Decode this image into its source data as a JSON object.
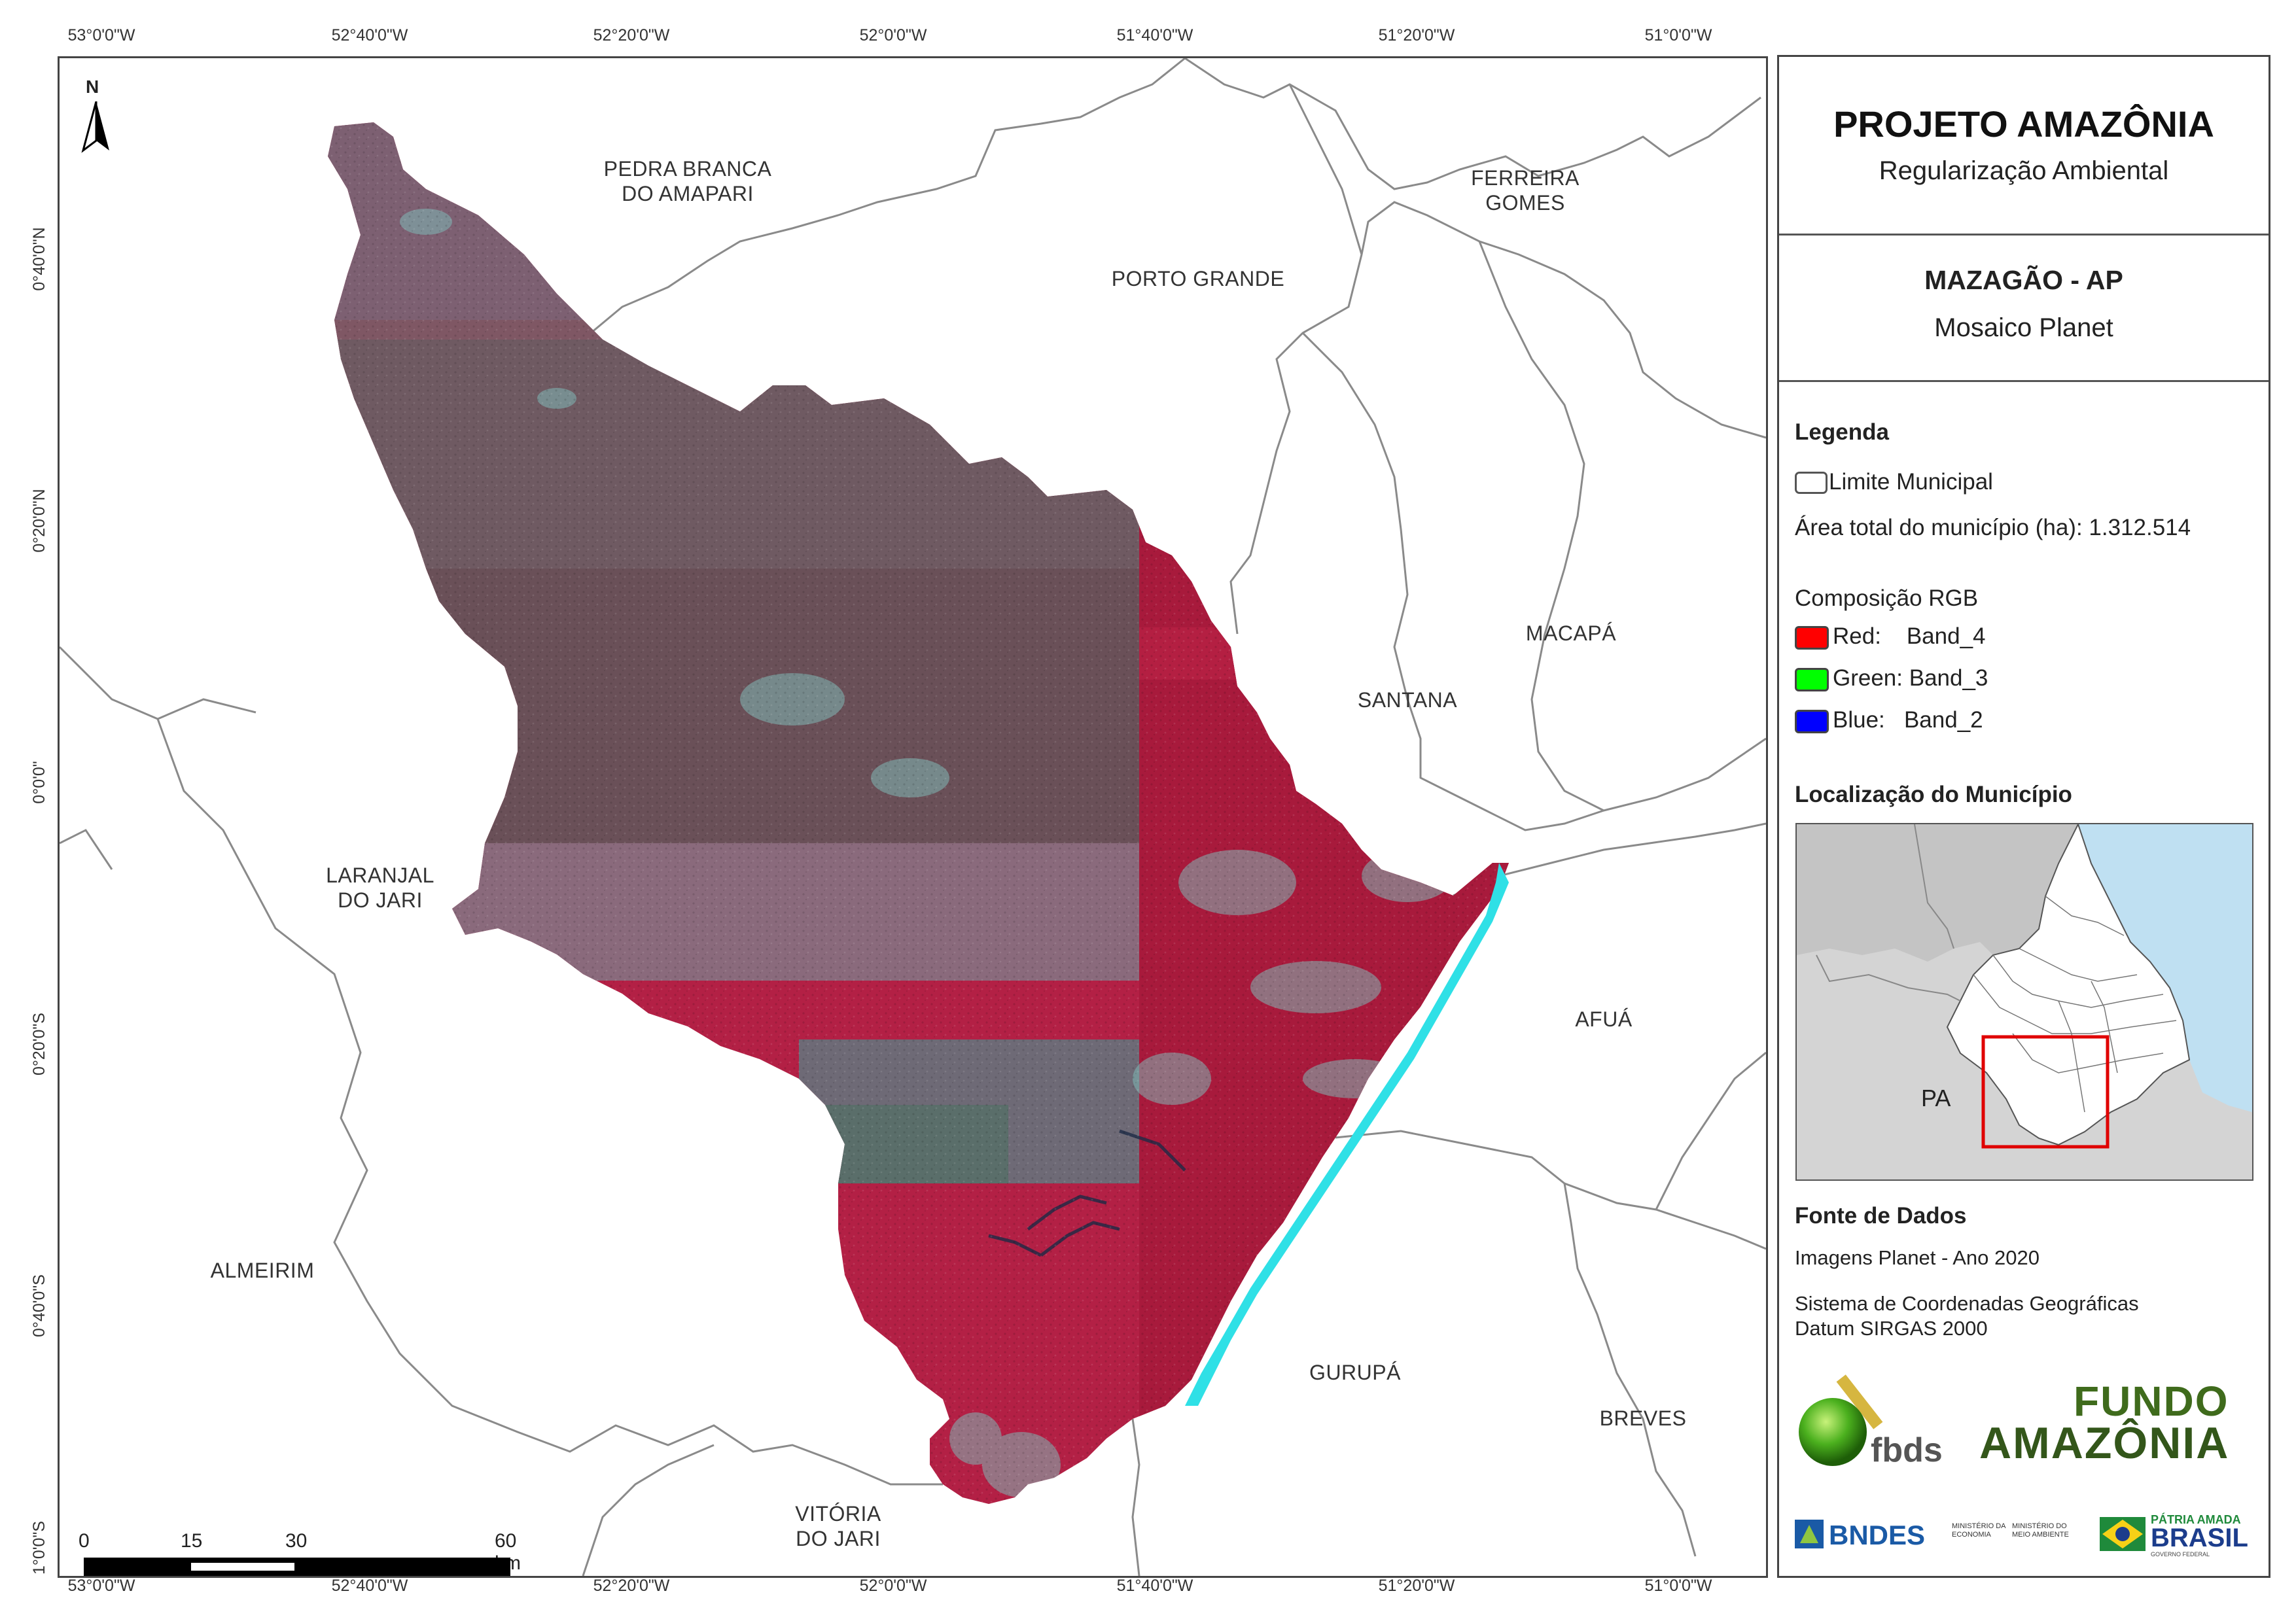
{
  "coordinates": {
    "top": [
      "53°0'0\"W",
      "52°40'0\"W",
      "52°20'0\"W",
      "52°0'0\"W",
      "51°40'0\"W",
      "51°20'0\"W",
      "51°0'0\"W"
    ],
    "bottom": [
      "53°0'0\"W",
      "52°40'0\"W",
      "52°20'0\"W",
      "52°0'0\"W",
      "51°40'0\"W",
      "51°20'0\"W",
      "51°0'0\"W"
    ],
    "left": [
      "0°40'0\"N",
      "0°20'0\"N",
      "0°0'0\"",
      "0°20'0\"S",
      "0°40'0\"S",
      "1°0'0\"S"
    ]
  },
  "north_arrow": {
    "label": "N"
  },
  "municipalities": {
    "pedra_branca": "PEDRA BRANCA\nDO AMAPARI",
    "ferreira_gomes": "FERREIRA\nGOMES",
    "porto_grande": "PORTO GRANDE",
    "macapa": "MACAPÁ",
    "santana": "SANTANA",
    "laranjal": "LARANJAL\nDO JARI",
    "afua": "AFUÁ",
    "almeirim": "ALMEIRIM",
    "gurupa": "GURUPÁ",
    "breves": "BREVES",
    "vitoria": "VITÓRIA\nDO JARI"
  },
  "scale": {
    "ticks": [
      "0",
      "15",
      "30",
      "60 km"
    ]
  },
  "panel": {
    "title": "PROJETO AMAZÔNIA",
    "subtitle": "Regularização Ambiental",
    "area_title": "MAZAGÃO - AP",
    "area_subtitle": "Mosaico Planet",
    "legend_heading": "Legenda",
    "limit_label": "Limite Municipal",
    "area_total": "Área total do município (ha): 1.312.514",
    "rgb_heading": "Composição RGB",
    "rgb": [
      {
        "label": "Red:    Band_4",
        "color": "#ff0000"
      },
      {
        "label": "Green: Band_3",
        "color": "#00ff00"
      },
      {
        "label": "Blue:   Band_2",
        "color": "#0000ff"
      }
    ],
    "location_heading": "Localização do Município",
    "inset_label": "PA",
    "source_heading": "Fonte de Dados",
    "source_text": "Imagens Planet - Ano 2020",
    "crs_line1": "Sistema de Coordenadas Geográficas",
    "crs_line2": "Datum SIRGAS 2000",
    "logo_fbds": "fbds",
    "logo_fundo1": "FUNDO",
    "logo_fundo2": "AMAZÔNIA",
    "logo_bndes": "BNDES",
    "logo_min1": "MINISTÉRIO DA\nECONOMIA",
    "logo_min2": "MINISTÉRIO DO\nMEIO AMBIENTE",
    "logo_patria1": "PÁTRIA AMADA",
    "logo_patria2": "BRASIL",
    "logo_patria3": "GOVERNO FEDERAL"
  },
  "colors": {
    "forest": "#b8234a",
    "grey_mosaic": "#7a5c6e",
    "river": "#2fe0e6",
    "inset_ocean": "#bfe0f2",
    "inset_land": "#d4d4d4",
    "highlight": "#e00000"
  }
}
